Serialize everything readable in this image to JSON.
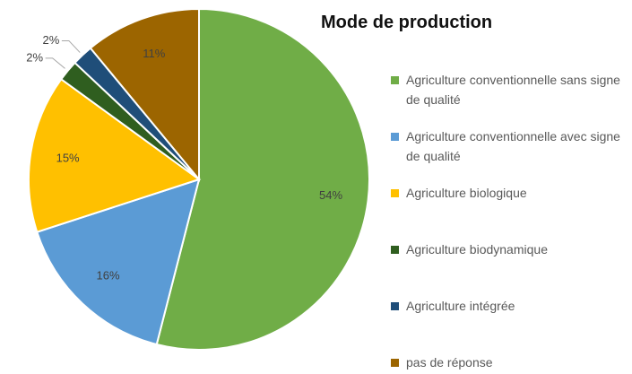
{
  "chart_data": {
    "type": "pie",
    "title": "Mode de production",
    "categories": [
      "Agriculture conventionnelle sans signe de qualité",
      "Agriculture conventionnelle avec signe de qualité",
      "Agriculture biologique",
      "Agriculture biodynamique",
      "Agriculture intégrée",
      "pas de réponse"
    ],
    "values": [
      54,
      16,
      15,
      2,
      2,
      11
    ],
    "value_labels": [
      "54%",
      "16%",
      "15%",
      "2%",
      "2%",
      "11%"
    ],
    "colors": [
      "#70ad47",
      "#5b9bd5",
      "#ffc000",
      "#2f5e1f",
      "#1f4e79",
      "#9c6500"
    ],
    "legend": "right"
  }
}
